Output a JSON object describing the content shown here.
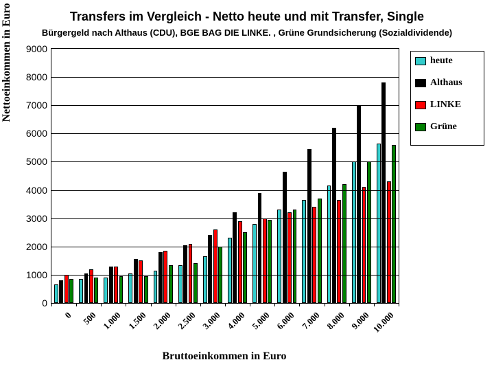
{
  "title_main": "Transfers im Vergleich - Netto heute und mit Transfer, Single",
  "title_sub": "Bürgergeld nach Althaus (CDU), BGE BAG DIE LINKE. , Grüne Grundsicherung (Sozialdividende)",
  "y_axis_label": "Nettoeinkommen in Euro",
  "x_axis_label": "Bruttoeinkommen in Euro",
  "chart": {
    "type": "bar",
    "ylim": [
      0,
      9000
    ],
    "ytick_step": 1000,
    "background_color": "#ffffff",
    "grid_color": "#000000",
    "categories": [
      "0",
      "500",
      "1.000",
      "1.500",
      "2.000",
      "2.500",
      "3.000",
      "4.000",
      "5.000",
      "6.000",
      "7.000",
      "8.000",
      "9.000",
      "10.000"
    ],
    "series": [
      {
        "name": "heute",
        "color": "#33cccc",
        "values": [
          650,
          850,
          900,
          1050,
          1150,
          1350,
          1650,
          2300,
          2800,
          3300,
          3650,
          4150,
          5000,
          5650
        ]
      },
      {
        "name": "Althaus",
        "color": "#000000",
        "values": [
          800,
          1050,
          1300,
          1550,
          1800,
          2050,
          2400,
          3200,
          3900,
          4650,
          5450,
          6200,
          7000,
          7800
        ]
      },
      {
        "name": "LINKE",
        "color": "#ff0000",
        "values": [
          1000,
          1200,
          1300,
          1500,
          1850,
          2100,
          2600,
          2900,
          3000,
          3200,
          3400,
          3650,
          4100,
          4300
        ]
      },
      {
        "name": "Grüne",
        "color": "#008000",
        "values": [
          850,
          900,
          950,
          950,
          1350,
          1400,
          2000,
          2500,
          2950,
          3300,
          3700,
          4200,
          5000,
          5600
        ]
      }
    ],
    "bar_group_width": 0.82,
    "bar_width": 0.8,
    "tick_fontsize": 14,
    "category_fontsize": 13
  },
  "legend": {
    "items": [
      {
        "label": "heute",
        "color": "#33cccc"
      },
      {
        "label": "Althaus",
        "color": "#000000"
      },
      {
        "label": "LINKE",
        "color": "#ff0000"
      },
      {
        "label": "Grüne",
        "color": "#008000"
      }
    ]
  }
}
